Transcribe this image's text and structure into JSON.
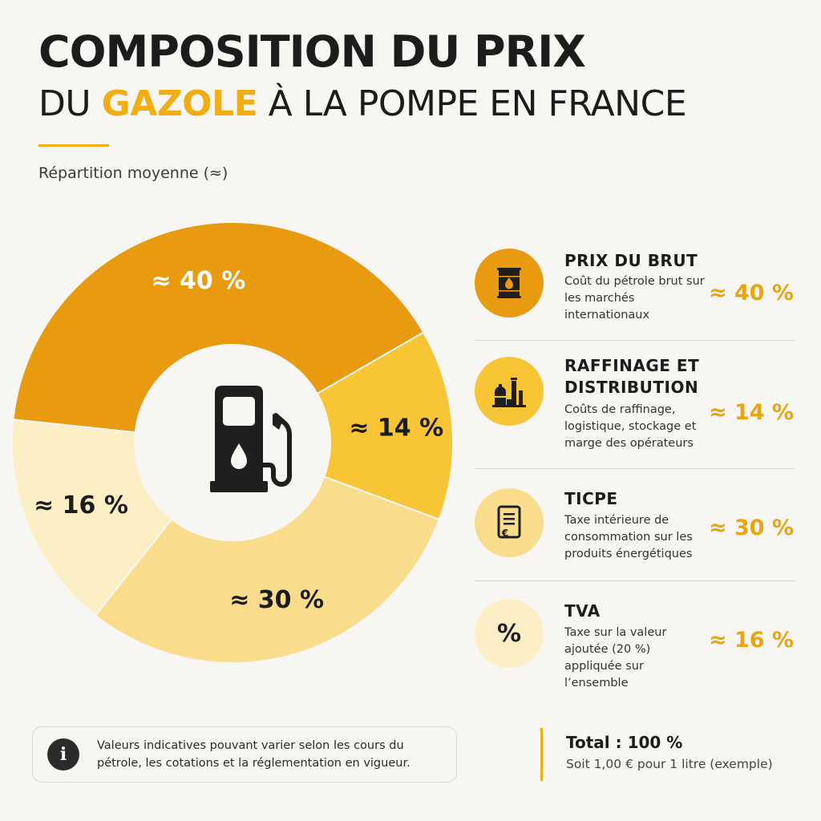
{
  "header": {
    "title_line1": "COMPOSITION DU PRIX",
    "title_line2_a": "DU ",
    "title_line2_highlight": "GAZOLE",
    "title_line2_b": " À LA POMPE EN FRANCE",
    "subtitle": "Répartition moyenne (≈)"
  },
  "chart_data": {
    "type": "pie",
    "variant": "donut",
    "categories": [
      "Prix du brut",
      "Raffinage et distribution",
      "TICPE",
      "TVA"
    ],
    "values": [
      40,
      14,
      30,
      16
    ],
    "labels": [
      "≈ 40 %",
      "≈ 14 %",
      "≈ 30 %",
      "≈ 16 %"
    ],
    "colors": [
      "#e89b10",
      "#f8c537",
      "#fadd8c",
      "#fcefc6"
    ],
    "center_icon": "fuel-pump-icon",
    "start_angle_deg": -84
  },
  "legend": {
    "items": [
      {
        "title": "PRIX DU BRUT",
        "description": "Coût du pétrole brut sur les marchés internationaux",
        "value": "≈ 40 %",
        "icon": "oil-barrel-icon",
        "icon_bg": "#e89b10"
      },
      {
        "title": "RAFFINAGE ET DISTRIBUTION",
        "description": "Coûts de raffinage, logistique, stockage et marge des opérateurs",
        "value": "≈ 14 %",
        "icon": "refinery-icon",
        "icon_bg": "#f8c537"
      },
      {
        "title": "TICPE",
        "description": "Taxe intérieure de consommation sur les produits énergétiques",
        "value": "≈ 30 %",
        "icon": "tax-document-euro-icon",
        "icon_bg": "#fadd8c"
      },
      {
        "title": "TVA",
        "description": "Taxe sur la valeur ajoutée (20 %) appliquée sur l’ensemble",
        "value": "≈ 16 %",
        "icon": "percent-icon",
        "icon_bg": "#fcefc6"
      }
    ]
  },
  "footer": {
    "note": "Valeurs indicatives pouvant varier selon les cours du pétrole, les cotations et la réglementation en vigueur.",
    "note_icon": "info-icon",
    "total_title": "Total : 100 %",
    "total_sub": "Soit 1,00 € pour 1 litre (exemple)"
  },
  "colors": {
    "accent": "#f2ad12",
    "text": "#1c1c1c",
    "background": "#f7f6f3"
  }
}
